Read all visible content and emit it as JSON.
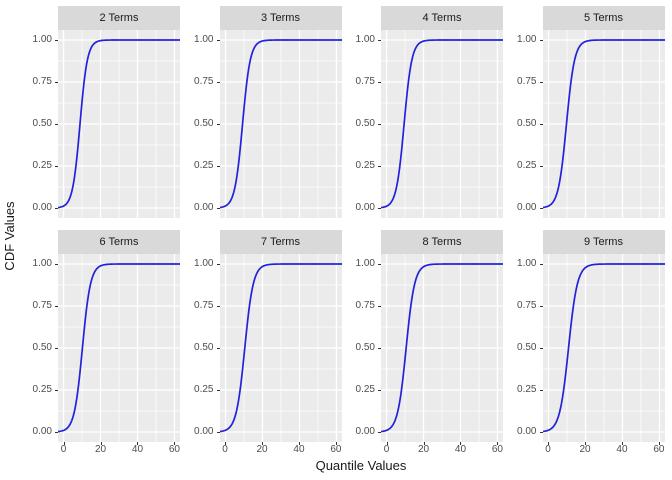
{
  "figure": {
    "y_axis_title": "CDF Values",
    "x_axis_title": "Quantile Values"
  },
  "axes": {
    "y_tick_labels": [
      "1.00",
      "0.75",
      "0.50",
      "0.25",
      "0.00"
    ],
    "x_tick_labels": [
      "0",
      "20",
      "40",
      "60"
    ]
  },
  "chart_data": {
    "type": "line",
    "layout": "facet_grid_2_rows_x_4_cols",
    "title": "",
    "xlabel": "Quantile Values",
    "ylabel": "CDF Values",
    "x_range": [
      0,
      60
    ],
    "y_range": [
      0,
      1
    ],
    "x_expansion": 3,
    "y_expansion": 0.06,
    "x_major_ticks": [
      0,
      20,
      40,
      60
    ],
    "x_minor_ticks": [
      10,
      30,
      50
    ],
    "y_major_ticks": [
      0,
      0.25,
      0.5,
      0.75,
      1.0
    ],
    "y_minor_ticks": [
      0.125,
      0.375,
      0.625,
      0.875
    ],
    "grid": "on",
    "legend": "none",
    "line_color": "#2222DC",
    "panel_bg": "#EBEBEB",
    "strip_bg": "#D9D9D9",
    "grid_color": "#FFFFFF",
    "facets": [
      {
        "label": "2 Terms",
        "curve_model": "logistic_cdf",
        "midpoint": 8.9,
        "scale": 2.0,
        "x_at_p25": 6.7,
        "x_at_p50": 8.9,
        "x_at_p75": 11.1
      },
      {
        "label": "3 Terms",
        "curve_model": "logistic_cdf",
        "midpoint": 9.2,
        "scale": 2.1,
        "x_at_p25": 6.9,
        "x_at_p50": 9.2,
        "x_at_p75": 11.5
      },
      {
        "label": "4 Terms",
        "curve_model": "logistic_cdf",
        "midpoint": 9.5,
        "scale": 2.1,
        "x_at_p25": 7.2,
        "x_at_p50": 9.5,
        "x_at_p75": 11.8
      },
      {
        "label": "5 Terms",
        "curve_model": "logistic_cdf",
        "midpoint": 9.7,
        "scale": 2.2,
        "x_at_p25": 7.3,
        "x_at_p50": 9.7,
        "x_at_p75": 12.1
      },
      {
        "label": "6 Terms",
        "curve_model": "logistic_cdf",
        "midpoint": 10.2,
        "scale": 2.2,
        "x_at_p25": 7.8,
        "x_at_p50": 10.2,
        "x_at_p75": 12.6
      },
      {
        "label": "7 Terms",
        "curve_model": "logistic_cdf",
        "midpoint": 10.4,
        "scale": 2.3,
        "x_at_p25": 7.9,
        "x_at_p50": 10.4,
        "x_at_p75": 12.9
      },
      {
        "label": "8 Terms",
        "curve_model": "logistic_cdf",
        "midpoint": 10.6,
        "scale": 2.3,
        "x_at_p25": 8.1,
        "x_at_p50": 10.6,
        "x_at_p75": 13.1
      },
      {
        "label": "9 Terms",
        "curve_model": "logistic_cdf",
        "midpoint": 10.8,
        "scale": 2.4,
        "x_at_p25": 8.2,
        "x_at_p50": 10.8,
        "x_at_p75": 13.4
      }
    ]
  }
}
